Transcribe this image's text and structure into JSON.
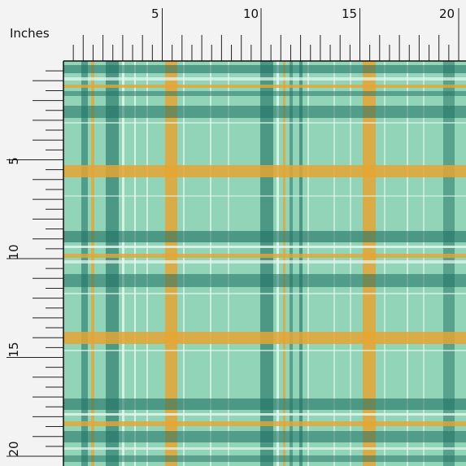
{
  "ruler": {
    "unit_label": "Inches",
    "top_labels": [
      "5",
      "10",
      "15",
      "20"
    ],
    "left_labels": [
      "5",
      "10",
      "15",
      "20"
    ]
  }
}
